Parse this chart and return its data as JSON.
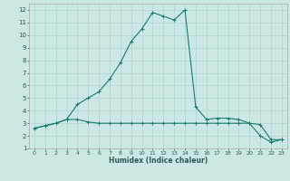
{
  "xlabel": "Humidex (Indice chaleur)",
  "background_color": "#cce8e5",
  "grid_color": "#afd4d0",
  "line_color": "#1a7a6e",
  "xlim": [
    -0.5,
    23.5
  ],
  "ylim": [
    1,
    12.5
  ],
  "yticks": [
    1,
    2,
    3,
    4,
    5,
    6,
    7,
    8,
    9,
    10,
    11,
    12
  ],
  "xticks": [
    0,
    1,
    2,
    3,
    4,
    5,
    6,
    7,
    8,
    9,
    10,
    11,
    12,
    13,
    14,
    15,
    16,
    17,
    18,
    19,
    20,
    21,
    22,
    23
  ],
  "line1_x": [
    0,
    1,
    2,
    3,
    4,
    5,
    6,
    7,
    8,
    9,
    10,
    11,
    12,
    13,
    14,
    15,
    16,
    17,
    18,
    19,
    20,
    21,
    22,
    23
  ],
  "line1_y": [
    2.6,
    2.8,
    3.0,
    3.3,
    3.3,
    3.1,
    3.0,
    3.0,
    3.0,
    3.0,
    3.0,
    3.0,
    3.0,
    3.0,
    3.0,
    3.0,
    3.0,
    3.0,
    3.0,
    3.0,
    3.0,
    2.9,
    1.7,
    1.7
  ],
  "line2_x": [
    0,
    1,
    2,
    3,
    4,
    5,
    6,
    7,
    8,
    9,
    10,
    11,
    12,
    13,
    14,
    15,
    16,
    17,
    18,
    19,
    20,
    21,
    22,
    23
  ],
  "line2_y": [
    2.6,
    2.8,
    3.0,
    3.3,
    4.5,
    5.0,
    5.5,
    6.5,
    7.8,
    9.5,
    10.5,
    11.8,
    11.5,
    11.2,
    12.0,
    4.3,
    3.3,
    3.4,
    3.4,
    3.3,
    3.0,
    2.0,
    1.5,
    1.7
  ],
  "marker": "+"
}
